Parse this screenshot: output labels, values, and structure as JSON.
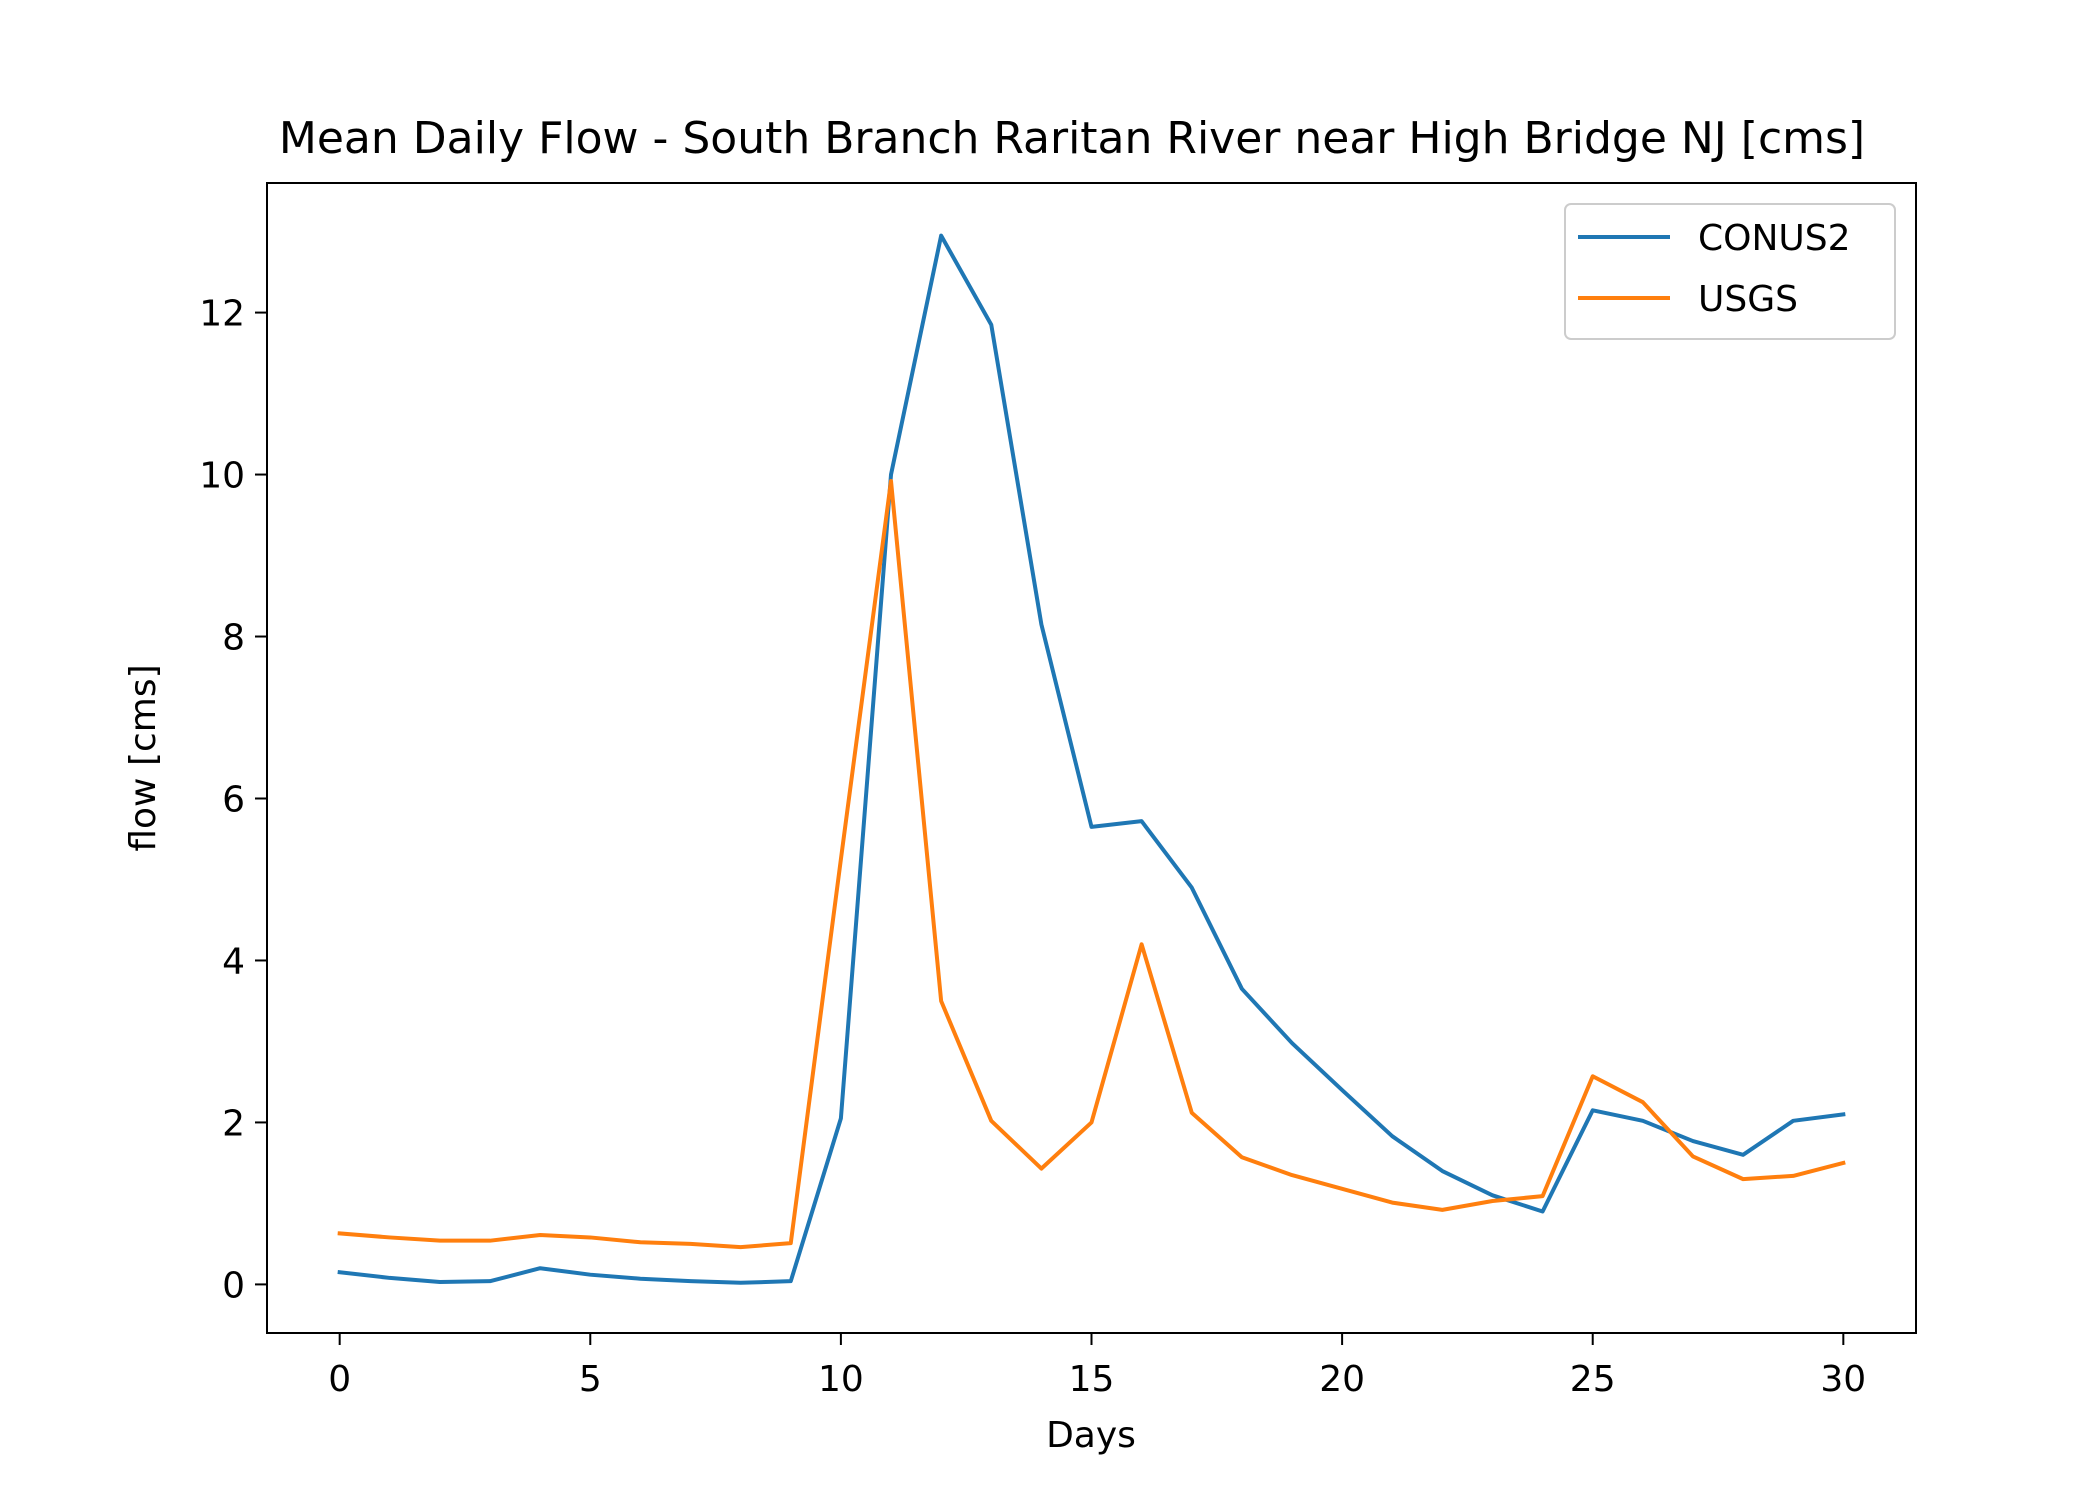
{
  "chart_data": {
    "type": "line",
    "title": "Mean Daily Flow - South Branch Raritan River near High Bridge NJ [cms]",
    "xlabel": "Days",
    "ylabel": "flow [cms]",
    "xlim": [
      -1.45,
      31.45
    ],
    "ylim": [
      -0.6,
      13.6
    ],
    "xticks": [
      0,
      5,
      10,
      15,
      20,
      25,
      30
    ],
    "yticks": [
      0,
      2,
      4,
      6,
      8,
      10,
      12
    ],
    "grid": false,
    "legend_position": "top-right",
    "x": [
      0,
      1,
      2,
      3,
      4,
      5,
      6,
      7,
      8,
      9,
      10,
      11,
      12,
      13,
      14,
      15,
      16,
      17,
      18,
      19,
      20,
      21,
      22,
      23,
      24,
      25,
      26,
      27,
      28,
      29,
      30
    ],
    "series": [
      {
        "name": "CONUS2",
        "color": "#1f77b4",
        "values": [
          0.15,
          0.08,
          0.03,
          0.04,
          0.2,
          0.12,
          0.07,
          0.04,
          0.02,
          0.04,
          2.05,
          10.0,
          12.95,
          11.85,
          8.15,
          5.65,
          5.72,
          4.9,
          3.65,
          2.98,
          2.4,
          1.83,
          1.4,
          1.1,
          0.9,
          2.15,
          2.02,
          1.77,
          1.6,
          2.02,
          2.1
        ]
      },
      {
        "name": "USGS",
        "color": "#ff7f0e",
        "values": [
          0.63,
          0.58,
          0.54,
          0.54,
          0.61,
          0.58,
          0.52,
          0.5,
          0.46,
          0.51,
          5.25,
          9.92,
          3.5,
          2.02,
          1.43,
          2.0,
          4.2,
          2.12,
          1.57,
          1.35,
          1.18,
          1.01,
          0.92,
          1.03,
          1.09,
          2.57,
          2.25,
          1.58,
          1.3,
          1.34,
          1.5
        ]
      }
    ]
  }
}
